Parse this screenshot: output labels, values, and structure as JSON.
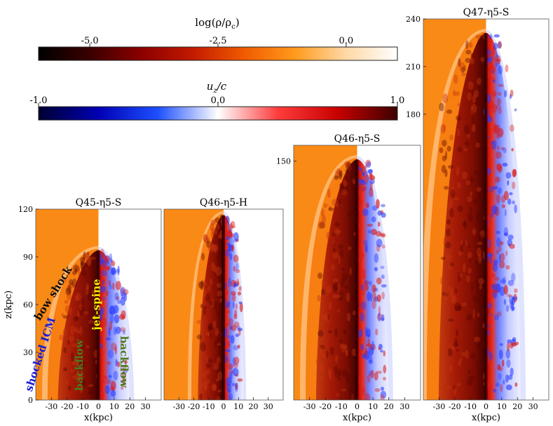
{
  "colorbars": [
    {
      "label": "log(ρ/ρ_c)",
      "label_main": "log(ρ/ρ",
      "label_sub": "c",
      "label_tail": ")",
      "range": [
        -6.0,
        1.0
      ],
      "ticks": [
        -5.0,
        -2.5,
        0.0
      ],
      "tick_labels": [
        "-5.0",
        "-2.5",
        "0.0"
      ],
      "colors": [
        "#000000",
        "#3a0000",
        "#8b0000",
        "#c21a00",
        "#f05a00",
        "#ff9a1c",
        "#ffd9a6",
        "#ffffff"
      ]
    },
    {
      "label": "u_z/c",
      "label_main": "u",
      "label_sub": "z",
      "label_tail": "/c",
      "range": [
        -1.0,
        1.0
      ],
      "ticks": [
        -1.0,
        0.0,
        1.0
      ],
      "tick_labels": [
        "-1.0",
        "0.0",
        "1.0"
      ],
      "colors": [
        "#000030",
        "#0000b4",
        "#1e50ff",
        "#ffffff",
        "#ff3c3c",
        "#c80000",
        "#3c0000"
      ]
    }
  ],
  "chart_data": [
    {
      "type": "heatmap",
      "title": "Q45-η5-S",
      "xlabel": "x(kpc)",
      "ylabel": "z(kpc)",
      "xlim": [
        -40,
        40
      ],
      "ylim": [
        0,
        120
      ],
      "xticks": [
        -30,
        -20,
        -10,
        0,
        10,
        20,
        30
      ],
      "xtick_labels": [
        "-30",
        "-20",
        "-10",
        "0",
        "10",
        "20",
        "30"
      ],
      "yticks": [
        0,
        30,
        60,
        90,
        120
      ],
      "ytick_labels": [
        "0",
        "30",
        "60",
        "90",
        "120"
      ],
      "jet_head_z": 95,
      "bow_half_width": 36,
      "annotations": [
        {
          "text": "bow shock",
          "color": "#111111",
          "x": -27,
          "z": 66,
          "angle": -58
        },
        {
          "text": "shocked ICM",
          "color": "#1a1ad6",
          "x": -35,
          "z": 28,
          "angle": -72
        },
        {
          "text": "backflow",
          "color": "#4d7a1c",
          "x": -10,
          "z": 22,
          "angle": -90
        },
        {
          "text": "jet-spine",
          "color": "#f3f000",
          "x": 1,
          "z": 60,
          "angle": -90
        },
        {
          "text": "backflow",
          "color": "#4d7a1c",
          "x": 14,
          "z": 24,
          "angle": 90
        }
      ]
    },
    {
      "type": "heatmap",
      "title": "Q46-η5-H",
      "xlabel": "",
      "ylabel": "",
      "xlim": [
        -40,
        40
      ],
      "ylim": [
        0,
        120
      ],
      "xticks": [
        -30,
        -20,
        -10,
        0,
        10,
        20,
        30
      ],
      "xtick_labels": [
        "-30",
        "-20",
        "-10",
        "0",
        "10",
        "20",
        "30"
      ],
      "yticks": [],
      "ytick_labels": [],
      "jet_head_z": 117,
      "bow_half_width": 24,
      "annotations": []
    },
    {
      "type": "heatmap",
      "title": "Q46-η5-S",
      "xlabel": "x(kpc)",
      "ylabel": "",
      "xlim": [
        -40,
        40
      ],
      "ylim": [
        0,
        160
      ],
      "xticks": [
        -30,
        -20,
        -10,
        0,
        10,
        20,
        30
      ],
      "xtick_labels": [
        "-30",
        "-20",
        "-10",
        "0",
        "10",
        "20",
        "30"
      ],
      "yticks": [
        150
      ],
      "ytick_labels": [
        "150"
      ],
      "jet_head_z": 152,
      "bow_half_width": 36,
      "annotations": []
    },
    {
      "type": "heatmap",
      "title": "Q47-η5-S",
      "xlabel": "x(kpc)",
      "ylabel": "",
      "xlim": [
        -40,
        40
      ],
      "ylim": [
        0,
        240
      ],
      "xticks": [
        -30,
        -20,
        -10,
        0,
        10,
        20,
        30
      ],
      "xtick_labels": [
        "-30",
        "-20",
        "-10",
        "0",
        "10",
        "20",
        "30"
      ],
      "yticks": [
        180,
        210,
        240
      ],
      "ytick_labels": [
        "180",
        "210",
        "240"
      ],
      "jet_head_z": 232,
      "bow_half_width": 42,
      "annotations": []
    }
  ]
}
